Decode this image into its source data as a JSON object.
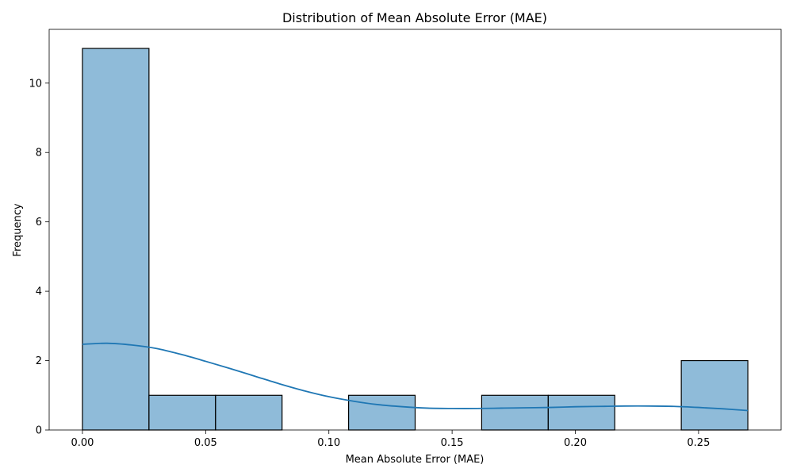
{
  "chart_data": {
    "type": "bar",
    "title": "Distribution of Mean Absolute Error (MAE)",
    "xlabel": "Mean Absolute Error (MAE)",
    "ylabel": "Frequency",
    "bin_edges": [
      0.0,
      0.027,
      0.054,
      0.081,
      0.108,
      0.135,
      0.162,
      0.189,
      0.216,
      0.243,
      0.27
    ],
    "counts": [
      11,
      1,
      1,
      0,
      1,
      0,
      1,
      1,
      0,
      2
    ],
    "xlim": [
      -0.0135,
      0.2835
    ],
    "ylim": [
      0,
      11.55
    ],
    "xticks": [
      0.0,
      0.05,
      0.1,
      0.15,
      0.2,
      0.25
    ],
    "xtick_labels": [
      "0.00",
      "0.05",
      "0.10",
      "0.15",
      "0.20",
      "0.25"
    ],
    "yticks": [
      0,
      2,
      4,
      6,
      8,
      10
    ],
    "ytick_labels": [
      "0",
      "2",
      "4",
      "6",
      "8",
      "10"
    ],
    "grid": false,
    "kde": {
      "x": [
        0.0,
        0.01,
        0.02,
        0.03,
        0.04,
        0.05,
        0.06,
        0.07,
        0.08,
        0.09,
        0.1,
        0.11,
        0.12,
        0.13,
        0.14,
        0.15,
        0.16,
        0.17,
        0.18,
        0.19,
        0.2,
        0.21,
        0.22,
        0.23,
        0.24,
        0.25,
        0.26,
        0.27
      ],
      "y": [
        2.47,
        2.5,
        2.45,
        2.35,
        2.18,
        1.98,
        1.77,
        1.55,
        1.33,
        1.13,
        0.96,
        0.83,
        0.73,
        0.67,
        0.63,
        0.62,
        0.62,
        0.63,
        0.64,
        0.65,
        0.67,
        0.68,
        0.69,
        0.69,
        0.68,
        0.65,
        0.61,
        0.56
      ]
    },
    "colors": {
      "bar_fill": "#1f77b4",
      "bar_fill_opacity": 0.5,
      "bar_edge": "#000000",
      "kde_line": "#1f77b4",
      "axis": "#000000"
    }
  }
}
